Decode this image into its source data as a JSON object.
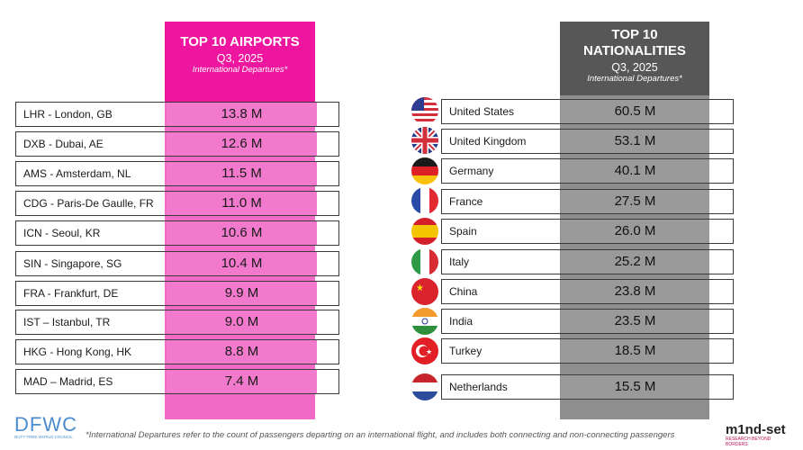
{
  "airports": {
    "title": "TOP 10 AIRPORTS",
    "period": "Q3, 2025",
    "subtitle": "International Departures*",
    "rows": [
      {
        "name": "LHR - London, GB",
        "value": "13.8 M"
      },
      {
        "name": "DXB - Dubai, AE",
        "value": "12.6 M"
      },
      {
        "name": "AMS - Amsterdam, NL",
        "value": "11.5 M"
      },
      {
        "name": "CDG - Paris-De Gaulle, FR",
        "value": "11.0 M"
      },
      {
        "name": "ICN - Seoul, KR",
        "value": "10.6 M"
      },
      {
        "name": "SIN - Singapore, SG",
        "value": "10.4 M"
      },
      {
        "name": "FRA - Frankfurt, DE",
        "value": "9.9 M"
      },
      {
        "name": "IST – Istanbul, TR",
        "value": "9.0 M"
      },
      {
        "name": "HKG - Hong Kong, HK",
        "value": "8.8 M"
      },
      {
        "name": "MAD – Madrid, ES",
        "value": "7.4 M"
      }
    ]
  },
  "nationalities": {
    "title_line1": "TOP 10",
    "title_line2": "NATIONALITIES",
    "period": "Q3, 2025",
    "subtitle": "International Departures*",
    "rows": [
      {
        "name": "United States",
        "value": "60.5 M",
        "flag": "us-flag-icon"
      },
      {
        "name": "United Kingdom",
        "value": "53.1 M",
        "flag": "uk-flag-icon"
      },
      {
        "name": "Germany",
        "value": "40.1 M",
        "flag": "germany-flag-icon"
      },
      {
        "name": "France",
        "value": "27.5 M",
        "flag": "france-flag-icon"
      },
      {
        "name": "Spain",
        "value": "26.0 M",
        "flag": "spain-flag-icon"
      },
      {
        "name": "Italy",
        "value": "25.2 M",
        "flag": "italy-flag-icon"
      },
      {
        "name": "China",
        "value": "23.8 M",
        "flag": "china-flag-icon"
      },
      {
        "name": "India",
        "value": "23.5 M",
        "flag": "india-flag-icon"
      },
      {
        "name": "Turkey",
        "value": "18.5 M",
        "flag": "turkey-flag-icon"
      },
      {
        "name": "Netherlands",
        "value": "15.5 M",
        "flag": "netherlands-flag-icon"
      }
    ]
  },
  "footnote": "*International Departures refer to the count of passengers departing on an international flight, and includes both connecting and non-connecting passengers",
  "logos": {
    "left": "DFWC",
    "left_sub": "DUTY FREE WORLD COUNCIL",
    "right": "m1nd-set",
    "right_sub": "RESEARCH BEYOND BORDERS"
  },
  "colors": {
    "airport_accent": "#ee159f",
    "airport_band": "#f06ac6",
    "nat_accent": "#575757",
    "nat_band": "#8e8e8e"
  }
}
